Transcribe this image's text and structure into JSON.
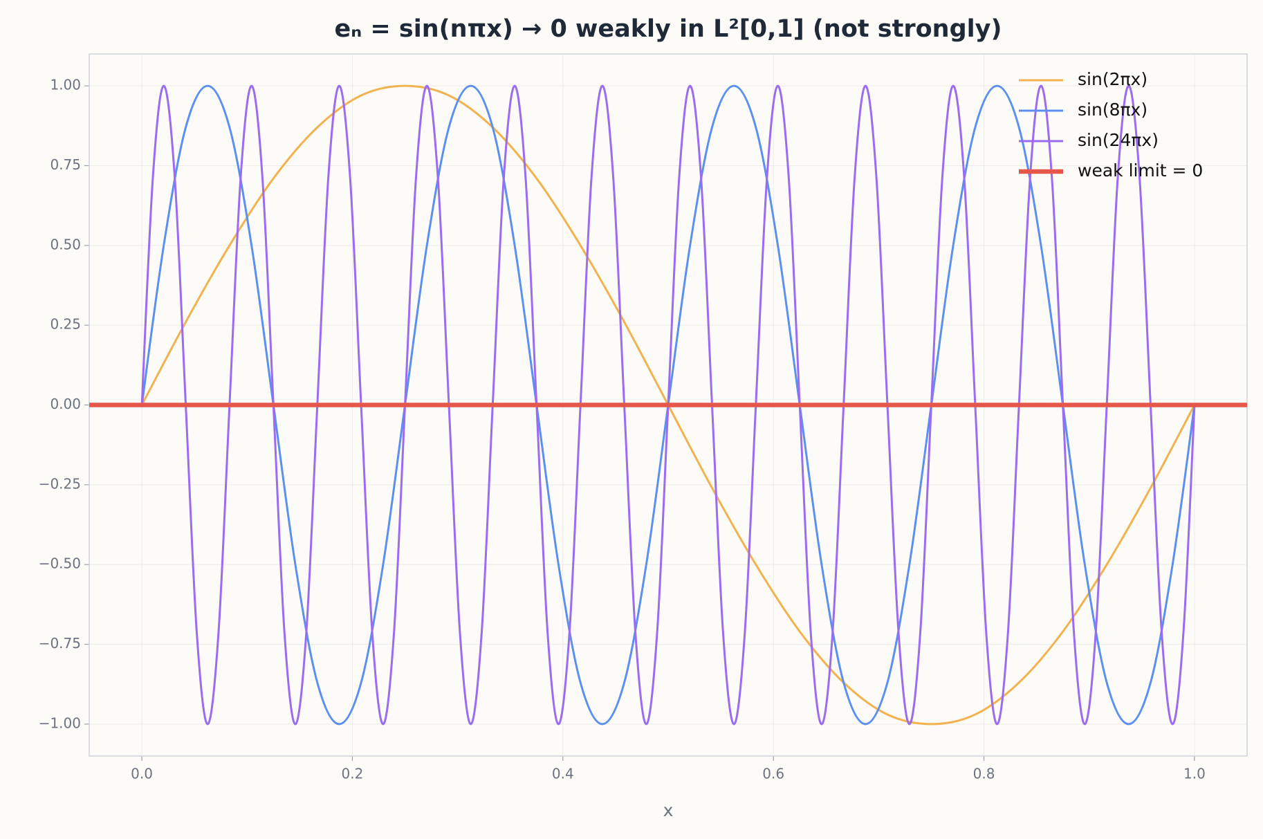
{
  "chart_data": {
    "type": "line",
    "title": "eₙ = sin(nπx) → 0 weakly in L²[0,1] (not strongly)",
    "x_label": "x",
    "xlim": [
      -0.05,
      1.05
    ],
    "ylim": [
      -1.1,
      1.1
    ],
    "xticks": [
      {
        "value": 0,
        "label": "0.0"
      },
      0.2,
      0.4,
      0.6,
      0.8,
      {
        "value": 1,
        "label": "1.0"
      }
    ],
    "yticks": [
      {
        "value": -1,
        "label": "−1.00"
      },
      {
        "value": -0.75,
        "label": "−0.75"
      },
      {
        "value": -0.5,
        "label": "−0.50"
      },
      {
        "value": -0.25,
        "label": "−0.25"
      },
      {
        "value": 0,
        "label": "0.00"
      },
      {
        "value": 0.25,
        "label": "0.25"
      },
      {
        "value": 0.5,
        "label": "0.50"
      },
      {
        "value": 0.75,
        "label": "0.75"
      },
      {
        "value": 1,
        "label": "1.00"
      }
    ],
    "grid": true,
    "legend": "upper right",
    "series": [
      {
        "name": "sin(2πx)",
        "color": "#f2b24f",
        "width": 3,
        "x": [
          0,
          0.0417,
          0.0833,
          0.125,
          0.1667,
          0.2083,
          0.25,
          0.2917,
          0.3333,
          0.375,
          0.4167,
          0.4583,
          0.5,
          0.5417,
          0.5833,
          0.625,
          0.6667,
          0.7083,
          0.75,
          0.7917,
          0.8333,
          0.875,
          0.9167,
          0.9583,
          1
        ],
        "values": [
          0,
          0.26,
          0.5,
          0.71,
          0.87,
          0.97,
          1,
          0.97,
          0.87,
          0.71,
          0.5,
          0.26,
          0,
          -0.26,
          -0.5,
          -0.71,
          -0.87,
          -0.97,
          -1,
          -0.97,
          -0.87,
          -0.71,
          -0.5,
          -0.26,
          0
        ]
      },
      {
        "name": "sin(8πx)",
        "color": "#5b8ff0",
        "width": 3,
        "x": [
          0,
          0.0208,
          0.0417,
          0.0625,
          0.0833,
          0.1042,
          0.125,
          0.1458,
          0.1667,
          0.1875,
          0.2083,
          0.2292,
          0.25,
          0.2708,
          0.2917,
          0.3125,
          0.3333,
          0.3542,
          0.375,
          0.3958,
          0.4167,
          0.4375,
          0.4583,
          0.4792,
          0.5,
          0.5208,
          0.5417,
          0.5625,
          0.5833,
          0.6042,
          0.625,
          0.6458,
          0.6667,
          0.6875,
          0.7083,
          0.7292,
          0.75,
          0.7708,
          0.7917,
          0.8125,
          0.8333,
          0.8542,
          0.875,
          0.8958,
          0.9167,
          0.9375,
          0.9583,
          0.9792,
          1
        ],
        "values": [
          0,
          0.5,
          0.87,
          1,
          0.87,
          0.5,
          0,
          -0.5,
          -0.87,
          -1,
          -0.87,
          -0.5,
          0,
          0.5,
          0.87,
          1,
          0.87,
          0.5,
          0,
          -0.5,
          -0.87,
          -1,
          -0.87,
          -0.5,
          0,
          0.5,
          0.87,
          1,
          0.87,
          0.5,
          0,
          -0.5,
          -0.87,
          -1,
          -0.87,
          -0.5,
          0,
          0.5,
          0.87,
          1,
          0.87,
          0.5,
          0,
          -0.5,
          -0.87,
          -1,
          -0.87,
          -0.5,
          0
        ]
      },
      {
        "name": "sin(24πx)",
        "color": "#9b6cf0",
        "width": 3,
        "x": [
          0,
          0.0104,
          0.0208,
          0.0313,
          0.0417,
          0.0521,
          0.0625,
          0.0729,
          0.0833,
          0.0938,
          0.1042,
          0.1146,
          0.125,
          0.1354,
          0.1458,
          0.1563,
          0.1667,
          0.1771,
          0.1875,
          0.1979,
          0.2083,
          0.2188,
          0.2292,
          0.2396,
          0.25,
          0.2604,
          0.2708,
          0.2813,
          0.2917,
          0.3021,
          0.3125,
          0.3229,
          0.3333,
          0.3438,
          0.3542,
          0.3646,
          0.375,
          0.3854,
          0.3958,
          0.4063,
          0.4167,
          0.4271,
          0.4375,
          0.4479,
          0.4583,
          0.4688,
          0.4792,
          0.4896,
          0.5,
          0.5104,
          0.5208,
          0.5313,
          0.5417,
          0.5521,
          0.5625,
          0.5729,
          0.5833,
          0.5938,
          0.6042,
          0.6146,
          0.625,
          0.6354,
          0.6458,
          0.6563,
          0.6667,
          0.6771,
          0.6875,
          0.6979,
          0.7083,
          0.7188,
          0.7292,
          0.7396,
          0.75,
          0.7604,
          0.7708,
          0.7813,
          0.7917,
          0.8021,
          0.8125,
          0.8229,
          0.8333,
          0.8438,
          0.8542,
          0.8646,
          0.875,
          0.8854,
          0.8958,
          0.9063,
          0.9167,
          0.9271,
          0.9375,
          0.9479,
          0.9583,
          0.9688,
          0.9792,
          0.9896,
          1
        ],
        "values": [
          0,
          0.71,
          1,
          0.71,
          0,
          -0.71,
          -1,
          -0.71,
          0,
          0.71,
          1,
          0.71,
          0,
          -0.71,
          -1,
          -0.71,
          0,
          0.71,
          1,
          0.71,
          0,
          -0.71,
          -1,
          -0.71,
          0,
          0.71,
          1,
          0.71,
          0,
          -0.71,
          -1,
          -0.71,
          0,
          0.71,
          1,
          0.71,
          0,
          -0.71,
          -1,
          -0.71,
          0,
          0.71,
          1,
          0.71,
          0,
          -0.71,
          -1,
          -0.71,
          0,
          0.71,
          1,
          0.71,
          0,
          -0.71,
          -1,
          -0.71,
          0,
          0.71,
          1,
          0.71,
          0,
          -0.71,
          -1,
          -0.71,
          0,
          0.71,
          1,
          0.71,
          0,
          -0.71,
          -1,
          -0.71,
          0,
          0.71,
          1,
          0.71,
          0,
          -0.71,
          -1,
          -0.71,
          0,
          0.71,
          1,
          0.71,
          0,
          -0.71,
          -1,
          -0.71,
          0,
          0.71,
          1,
          0.71,
          0,
          -0.71,
          -1,
          -0.71,
          0
        ]
      },
      {
        "name": "weak limit = 0",
        "color": "#e5574a",
        "width": 6.5,
        "x": [
          -0.05,
          1.05
        ],
        "values": [
          0,
          0
        ]
      }
    ]
  }
}
